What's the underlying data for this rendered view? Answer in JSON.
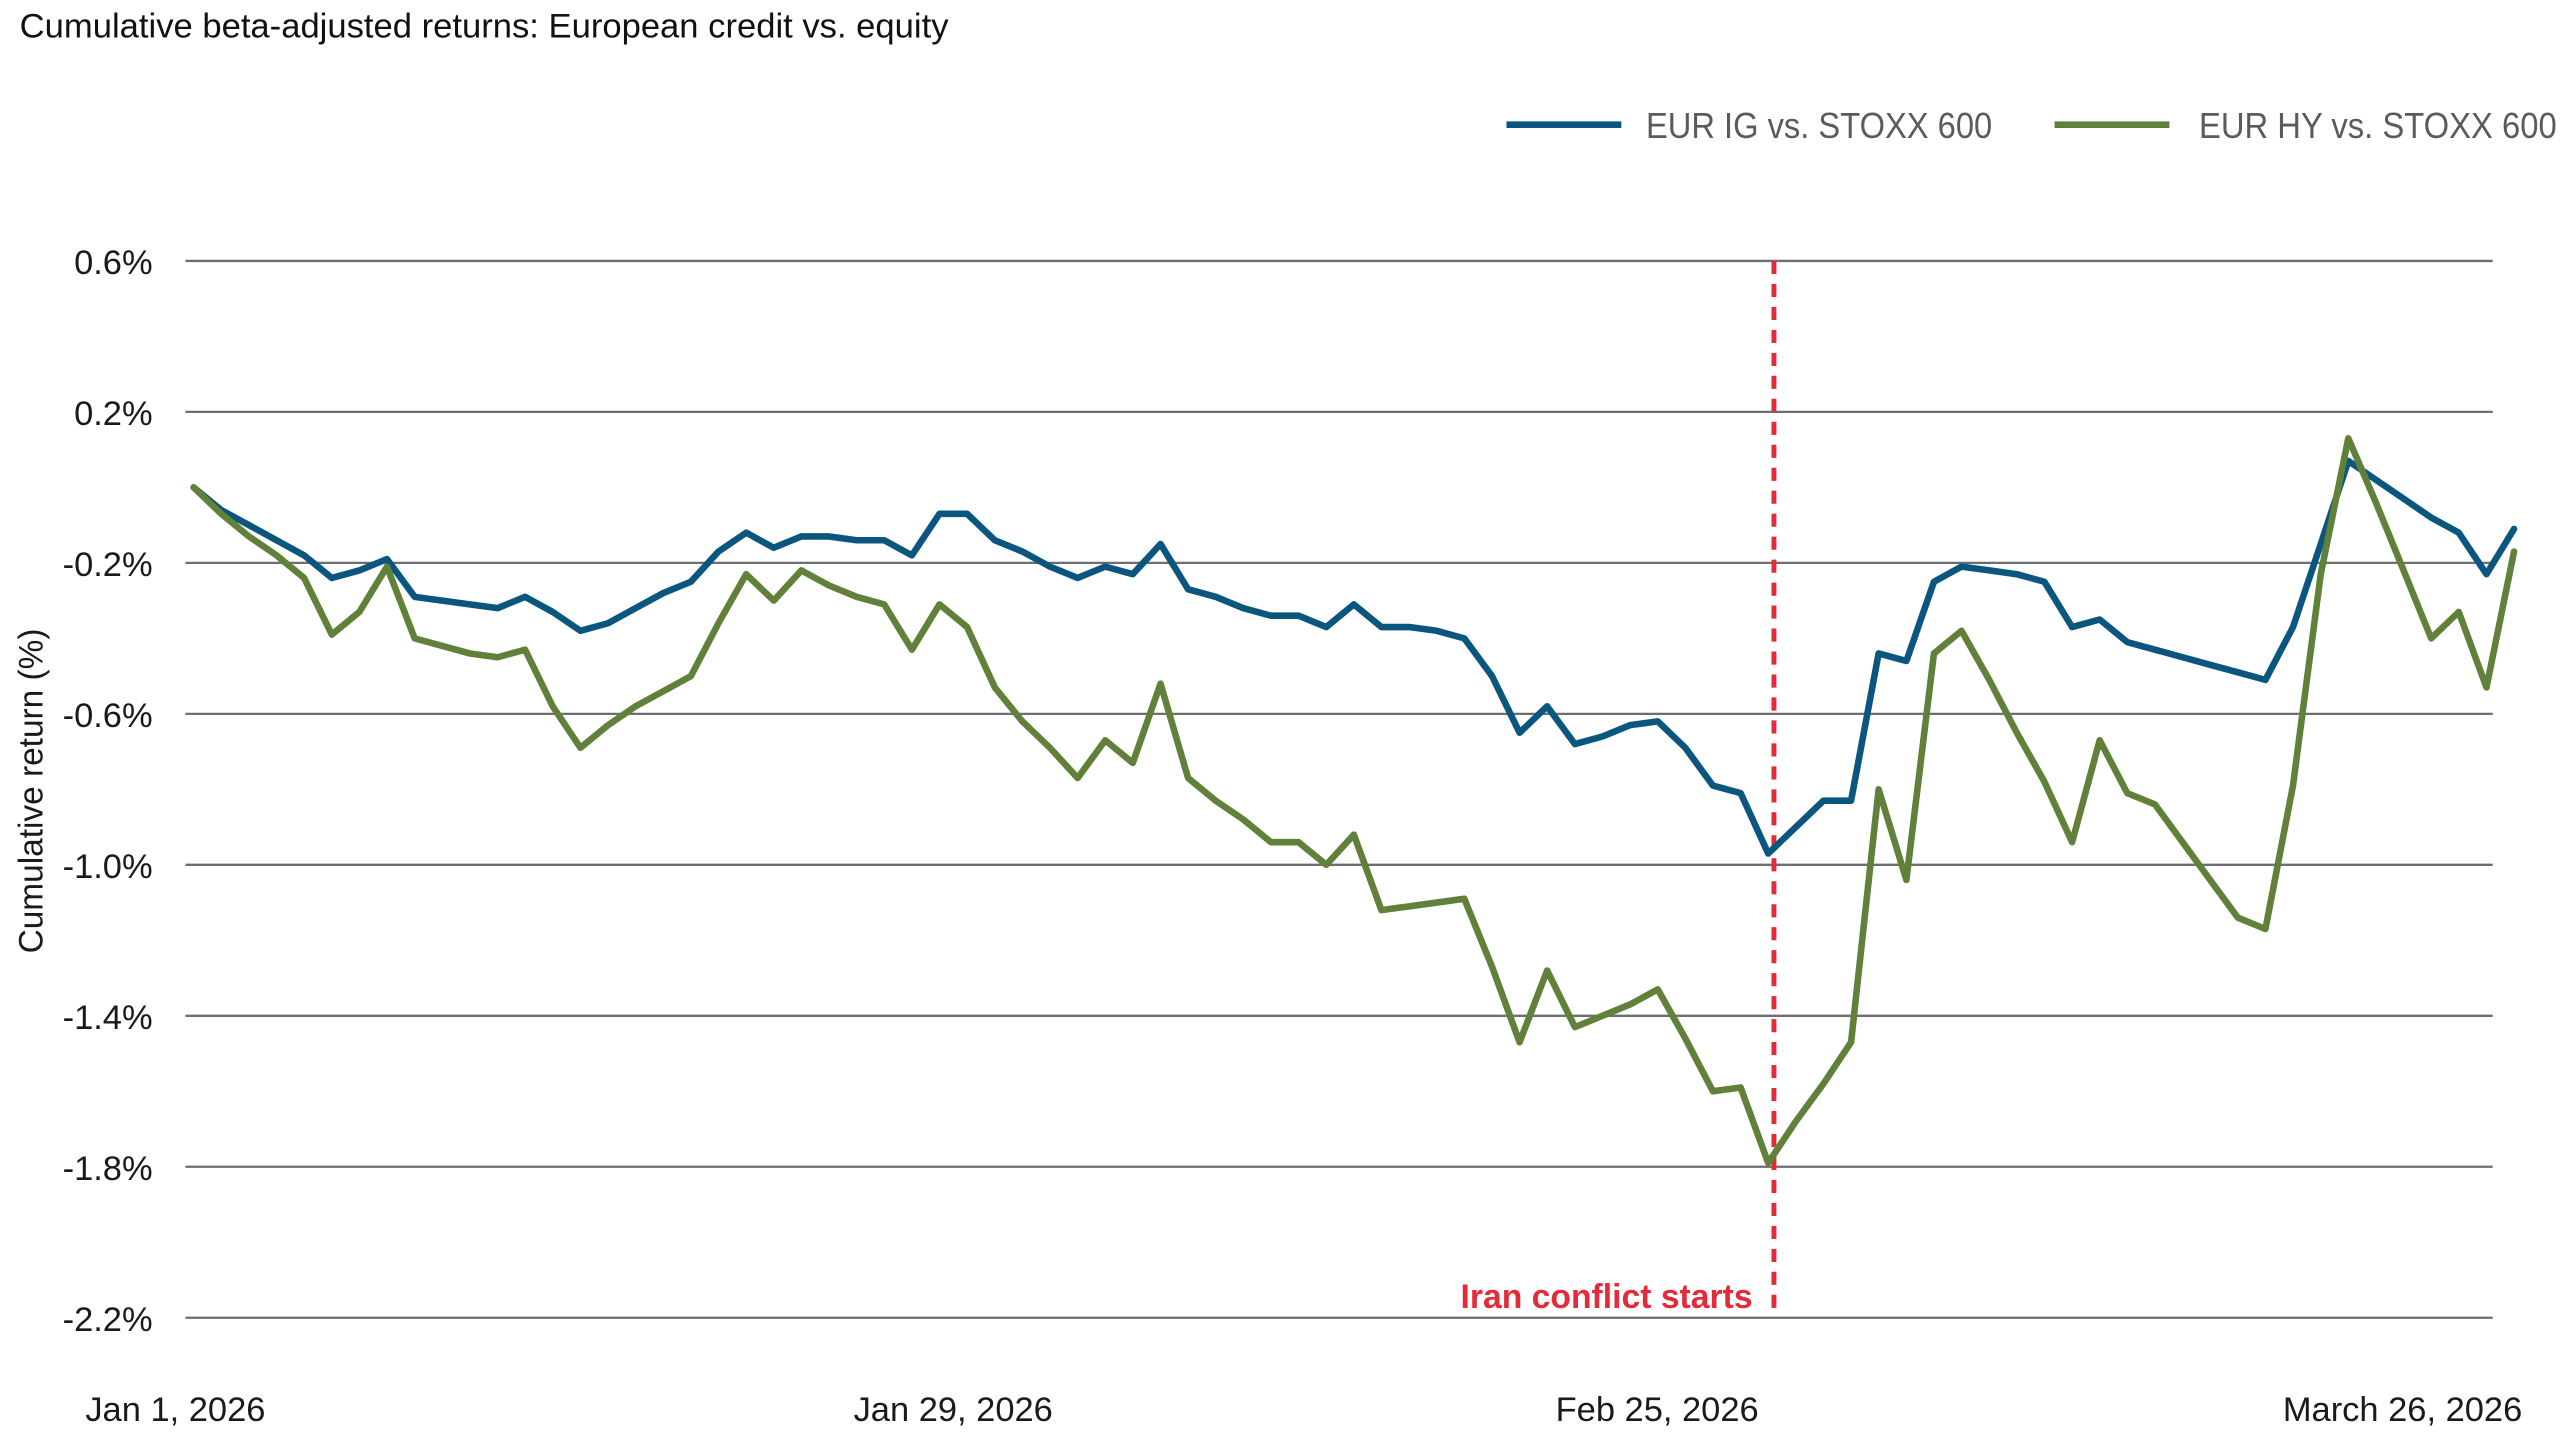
{
  "chart_data": {
    "type": "line",
    "title": "Cumulative beta-adjusted returns: European credit vs. equity",
    "xlabel": "",
    "ylabel": "Cumulative return (%)",
    "xlim": [
      "2026-01-01",
      "2026-03-31"
    ],
    "ylim": [
      -2.2,
      0.6
    ],
    "x_ticks": [
      {
        "date": "2026-01-01",
        "label": "Jan 1, 2026"
      },
      {
        "date": "2026-01-29",
        "label": "Jan 29, 2026"
      },
      {
        "date": "2026-02-25",
        "label": "Feb 25, 2026"
      },
      {
        "date": "2026-03-26",
        "label": "March 26, 2026"
      }
    ],
    "y_ticks": [
      {
        "value": 0.6,
        "label": "0.6%"
      },
      {
        "value": 0.2,
        "label": "0.2%"
      },
      {
        "value": -0.2,
        "label": "-0.2%"
      },
      {
        "value": -0.6,
        "label": "-0.6%"
      },
      {
        "value": -1.0,
        "label": "-1.0%"
      },
      {
        "value": -1.4,
        "label": "-1.4%"
      },
      {
        "value": -1.8,
        "label": "-1.8%"
      },
      {
        "value": -2.2,
        "label": "-2.2%"
      }
    ],
    "grid": "horizontal",
    "legend_position": "top-right",
    "series": [
      {
        "name": "EUR IG vs. STOXX 600",
        "color": "#0b567f",
        "values": [
          0.0,
          -0.06,
          -0.1,
          -0.14,
          -0.18,
          -0.24,
          -0.22,
          -0.19,
          -0.29,
          -0.3,
          -0.31,
          -0.32,
          -0.29,
          -0.33,
          -0.38,
          -0.36,
          -0.32,
          -0.28,
          -0.25,
          -0.17,
          -0.12,
          -0.16,
          -0.13,
          -0.13,
          -0.14,
          -0.14,
          -0.18,
          -0.07,
          -0.07,
          -0.14,
          -0.17,
          -0.21,
          -0.24,
          -0.21,
          -0.23,
          -0.15,
          -0.27,
          -0.29,
          -0.32,
          -0.34,
          -0.34,
          -0.37,
          -0.31,
          -0.37,
          -0.37,
          -0.38,
          -0.4,
          -0.5,
          -0.65,
          -0.58,
          -0.68,
          -0.66,
          -0.63,
          -0.62,
          -0.69,
          -0.79,
          -0.81,
          -0.97,
          -0.9,
          -0.83,
          -0.83,
          -0.44,
          -0.46,
          -0.25,
          -0.21,
          -0.22,
          -0.23,
          -0.25,
          -0.37,
          -0.35,
          -0.41,
          -0.43,
          -0.45,
          -0.47,
          -0.49,
          -0.51,
          -0.37,
          -0.15,
          0.07,
          0.02,
          -0.03,
          -0.08,
          -0.12,
          -0.23,
          -0.11
        ]
      },
      {
        "name": "EUR HY vs. STOXX 600",
        "color": "#61803a",
        "values": [
          0.0,
          -0.07,
          -0.13,
          -0.18,
          -0.24,
          -0.39,
          -0.33,
          -0.21,
          -0.4,
          -0.42,
          -0.44,
          -0.45,
          -0.43,
          -0.58,
          -0.69,
          -0.63,
          -0.58,
          -0.54,
          -0.5,
          -0.36,
          -0.23,
          -0.3,
          -0.22,
          -0.26,
          -0.29,
          -0.31,
          -0.43,
          -0.31,
          -0.37,
          -0.53,
          -0.62,
          -0.69,
          -0.77,
          -0.67,
          -0.73,
          -0.52,
          -0.77,
          -0.83,
          -0.88,
          -0.94,
          -0.94,
          -1.0,
          -0.92,
          -1.12,
          -1.11,
          -1.1,
          -1.09,
          -1.27,
          -1.47,
          -1.28,
          -1.43,
          -1.4,
          -1.37,
          -1.33,
          -1.46,
          -1.6,
          -1.59,
          -1.79,
          -1.68,
          -1.58,
          -1.47,
          -0.8,
          -1.04,
          -0.44,
          -0.38,
          -0.51,
          -0.65,
          -0.78,
          -0.94,
          -0.67,
          -0.81,
          -0.84,
          -0.94,
          -1.04,
          -1.14,
          -1.17,
          -0.79,
          -0.23,
          0.13,
          -0.04,
          -0.22,
          -0.4,
          -0.33,
          -0.53,
          -0.17
        ]
      }
    ],
    "annotations": [
      {
        "type": "vertical-line",
        "date": "2026-02-25",
        "style": "dashed",
        "color": "#e32b3a",
        "label": "Iran conflict starts"
      }
    ]
  }
}
